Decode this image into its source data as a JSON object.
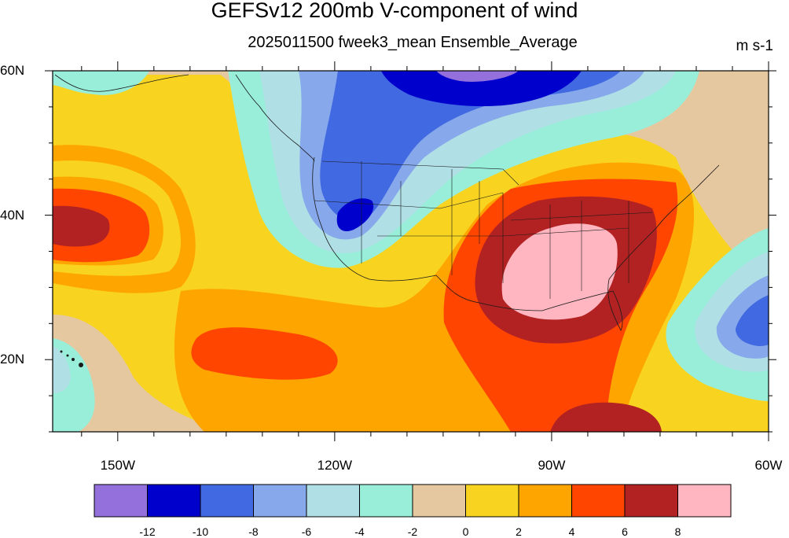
{
  "title": "GEFSv12 200mb V-component of wind",
  "subtitle": "2025011500 fweek3_mean Ensemble_Average",
  "units": "m s-1",
  "lat_labels": [
    {
      "text": "60N",
      "lat": 60
    },
    {
      "text": "40N",
      "lat": 40
    },
    {
      "text": "20N",
      "lat": 20
    }
  ],
  "lon_labels": [
    {
      "text": "150W",
      "lon": -150
    },
    {
      "text": "120W",
      "lon": -120
    },
    {
      "text": "90W",
      "lon": -90
    },
    {
      "text": "60W",
      "lon": -60
    }
  ],
  "extent": {
    "lon_min": -159,
    "lon_max": -60,
    "lat_min": 10,
    "lat_max": 60
  },
  "colorbar": {
    "colors": [
      "#9370db",
      "#0000cd",
      "#4169e1",
      "#87a8eb",
      "#b0e0e6",
      "#98eed8",
      "#e6c8a0",
      "#f8d420",
      "#ffa500",
      "#ff4500",
      "#b22222",
      "#ffb6c1"
    ],
    "labels": [
      "-12",
      "-10",
      "-8",
      "-6",
      "-4",
      "-2",
      "0",
      "2",
      "4",
      "6",
      "8"
    ]
  }
}
